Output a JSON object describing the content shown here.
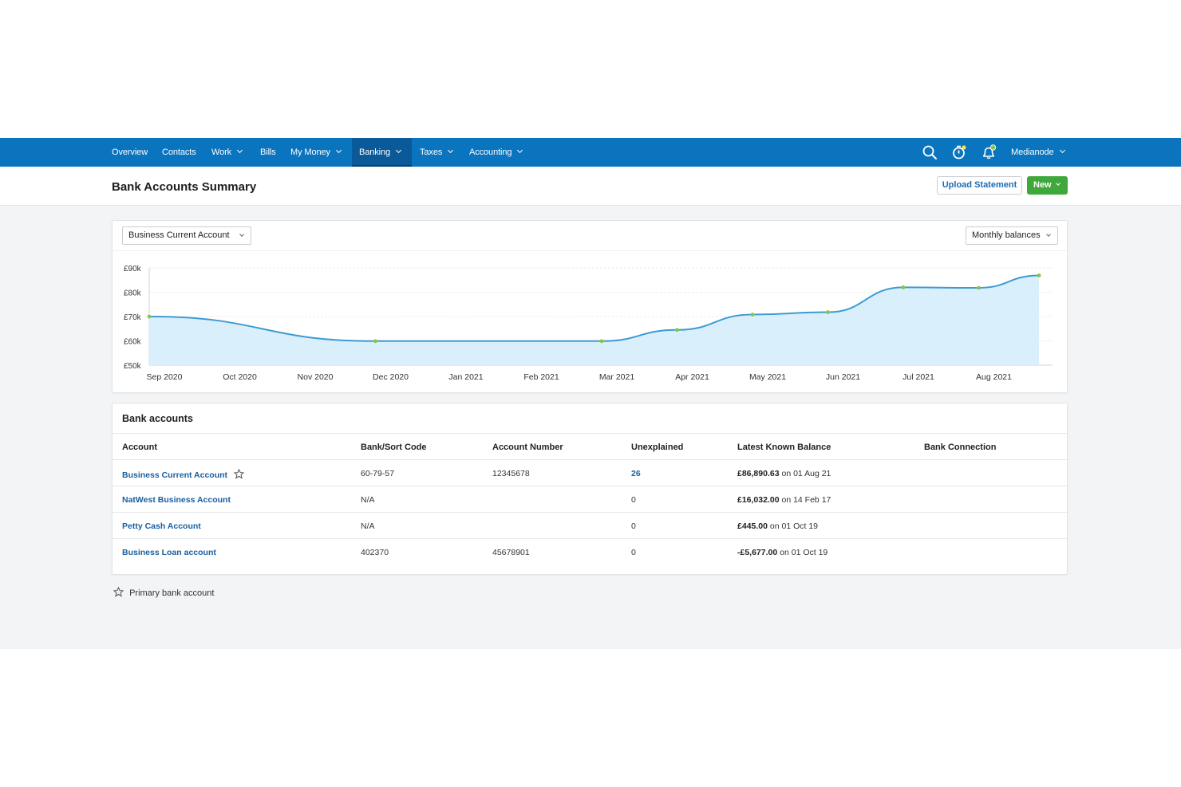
{
  "nav": {
    "items": [
      {
        "label": "Overview",
        "dropdown": false
      },
      {
        "label": "Contacts",
        "dropdown": false
      },
      {
        "label": "Work",
        "dropdown": true
      },
      {
        "label": "Bills",
        "dropdown": false
      },
      {
        "label": "My Money",
        "dropdown": true
      },
      {
        "label": "Banking",
        "dropdown": true,
        "active": true
      },
      {
        "label": "Taxes",
        "dropdown": true
      },
      {
        "label": "Accounting",
        "dropdown": true
      }
    ],
    "user": "Medianode",
    "icons": [
      "search-icon",
      "timer-icon",
      "bell-icon"
    ],
    "background": "#0a74be"
  },
  "header": {
    "title": "Bank Accounts Summary",
    "upload_label": "Upload Statement",
    "new_label": "New"
  },
  "chart_controls": {
    "account_select": "Business Current Account",
    "view_select": "Monthly balances"
  },
  "chart_data": {
    "type": "area",
    "categories": [
      "Sep 2020",
      "Oct 2020",
      "Nov 2020",
      "Dec 2020",
      "Jan 2021",
      "Feb 2021",
      "Mar 2021",
      "Apr 2021",
      "May 2021",
      "Jun 2021",
      "Jul 2021",
      "Aug 2021"
    ],
    "x": [
      "Sep 2020",
      "Dec 2020",
      "Mar 2021",
      "Apr 2021",
      "May 2021",
      "Jun 2021",
      "Jul 2021",
      "Aug 2021",
      "end"
    ],
    "x_positions_months": [
      0,
      3,
      6,
      7,
      8,
      9,
      10,
      11,
      11.8
    ],
    "values": [
      70000,
      59900,
      59900,
      64500,
      70800,
      71800,
      82000,
      81800,
      86900
    ],
    "ytick_labels": [
      "£90k",
      "£80k",
      "£70k",
      "£60k",
      "£50k"
    ],
    "yticks": [
      90000,
      80000,
      70000,
      60000,
      50000
    ],
    "ylim": [
      50000,
      90000
    ],
    "grid": true,
    "line_color": "#3d9bd4",
    "fill_color": "#d9effc",
    "point_color": "#8bc34a"
  },
  "accounts": {
    "title": "Bank accounts",
    "columns": [
      "Account",
      "Bank/Sort Code",
      "Account Number",
      "Unexplained",
      "Latest Known Balance",
      "Bank Connection"
    ],
    "rows": [
      {
        "name": "Business Current Account",
        "primary": true,
        "sort_code": "60-79-57",
        "number": "12345678",
        "unexplained": "26",
        "unexplained_link": true,
        "balance": "£86,890.63",
        "date": "on 01 Aug 21",
        "connection": ""
      },
      {
        "name": "NatWest Business Account",
        "primary": false,
        "sort_code": "N/A",
        "number": "",
        "unexplained": "0",
        "unexplained_link": false,
        "balance": "£16,032.00",
        "date": "on 14 Feb 17",
        "connection": ""
      },
      {
        "name": "Petty Cash Account",
        "primary": false,
        "sort_code": "N/A",
        "number": "",
        "unexplained": "0",
        "unexplained_link": false,
        "balance": "£445.00",
        "date": "on 01 Oct 19",
        "connection": ""
      },
      {
        "name": "Business Loan account",
        "primary": false,
        "sort_code": "402370",
        "number": "45678901",
        "unexplained": "0",
        "unexplained_link": false,
        "balance": "-£5,677.00",
        "date": "on 01 Oct 19",
        "connection": ""
      }
    ]
  },
  "legend": {
    "label": "Primary bank account",
    "icon": "star-outline-icon"
  }
}
